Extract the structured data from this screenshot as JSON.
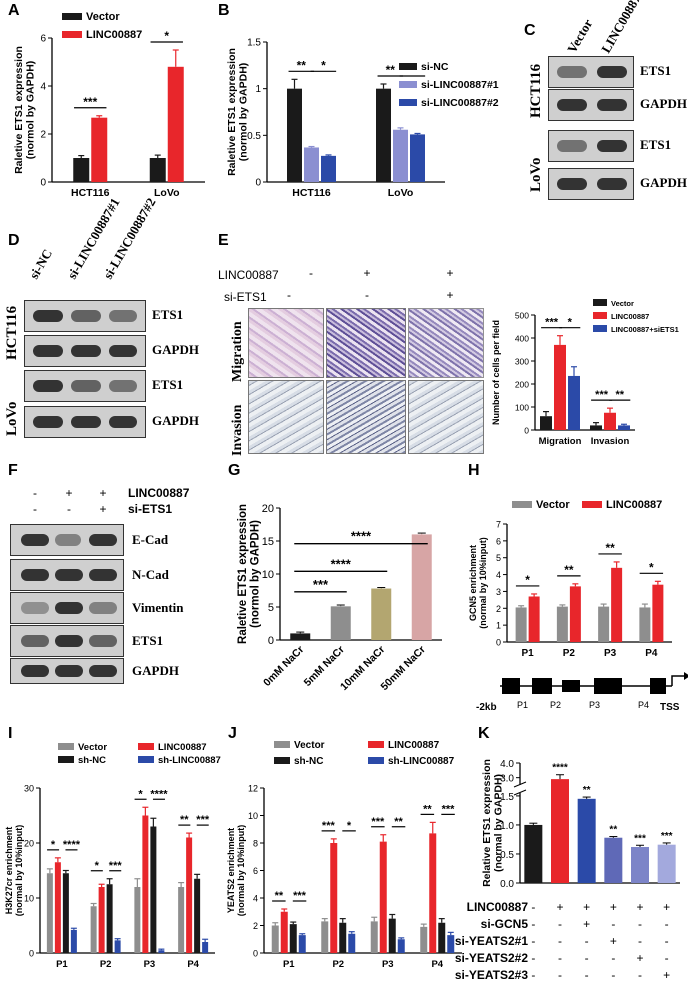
{
  "panels": {
    "A": {
      "label": "A"
    },
    "B": {
      "label": "B"
    },
    "C": {
      "label": "C"
    },
    "D": {
      "label": "D"
    },
    "E": {
      "label": "E"
    },
    "F": {
      "label": "F"
    },
    "G": {
      "label": "G"
    },
    "H": {
      "label": "H"
    },
    "I": {
      "label": "I"
    },
    "J": {
      "label": "J"
    },
    "K": {
      "label": "K"
    }
  },
  "blot_C": {
    "lanes": [
      "Vector",
      "LINC00887"
    ],
    "groups": [
      "HCT116",
      "LoVo"
    ],
    "rows": [
      "ETS1",
      "GAPDH",
      "ETS1",
      "GAPDH"
    ]
  },
  "blot_D": {
    "lanes": [
      "si-NC",
      "si-LINC00887#1",
      "si-LINC00887#2"
    ],
    "groups": [
      "HCT116",
      "LoVo"
    ],
    "rows": [
      "ETS1",
      "GAPDH",
      "ETS1",
      "GAPDH"
    ]
  },
  "panel_E": {
    "row_labels": [
      "LINC00887",
      "si-ETS1"
    ],
    "signs": [
      [
        "-",
        "+",
        "+"
      ],
      [
        "-",
        "-",
        "+"
      ]
    ],
    "image_rows": [
      "Migration",
      "Invasion"
    ]
  },
  "blot_F": {
    "row_labels": [
      "LINC00887",
      "si-ETS1"
    ],
    "signs": [
      [
        "-",
        "+",
        "+"
      ],
      [
        "-",
        "-",
        "+"
      ]
    ],
    "rows": [
      "E-Cad",
      "N-Cad",
      "Vimentin",
      "ETS1",
      "GAPDH"
    ]
  },
  "diagram_H": {
    "left": "-2kb",
    "right": "TSS",
    "regions": [
      "P1",
      "P2",
      "P3",
      "P4"
    ]
  },
  "panel_K_signs": {
    "rows": [
      "LINC00887",
      "si-GCN5",
      "si-YEATS2#1",
      "si-YEATS2#2",
      "si-YEATS2#3"
    ],
    "signs": [
      [
        "-",
        "+",
        "+",
        "+",
        "+",
        "+"
      ],
      [
        "-",
        "-",
        "+",
        "-",
        "-",
        "-"
      ],
      [
        "-",
        "-",
        "-",
        "+",
        "-",
        "-"
      ],
      [
        "-",
        "-",
        "-",
        "-",
        "+",
        "-"
      ],
      [
        "-",
        "-",
        "-",
        "-",
        "-",
        "+"
      ]
    ]
  },
  "chart_data": [
    {
      "id": "A",
      "type": "bar",
      "ylabel": "Raletive ETS1 expression\n(normol by GAPDH)",
      "categories": [
        "HCT116",
        "LoVo"
      ],
      "series": [
        {
          "name": "Vector",
          "color": "#1a1a1a",
          "values": [
            1.0,
            1.0
          ],
          "errors": [
            0.1,
            0.12
          ]
        },
        {
          "name": "LINC00887",
          "color": "#e8262b",
          "values": [
            2.68,
            4.8
          ],
          "errors": [
            0.08,
            0.7
          ]
        }
      ],
      "ylim": [
        0,
        6
      ],
      "yticks": [
        0,
        2,
        4,
        6
      ],
      "significance": [
        "***",
        "*"
      ]
    },
    {
      "id": "B",
      "type": "bar",
      "ylabel": "Raletive ETS1 expression\n(normol by GAPDH)",
      "categories": [
        "HCT116",
        "LoVo"
      ],
      "series": [
        {
          "name": "si-NC",
          "color": "#1a1a1a",
          "values": [
            1.0,
            1.0
          ],
          "errors": [
            0.1,
            0.05
          ]
        },
        {
          "name": "si-LINC00887#1",
          "color": "#8b8fd1",
          "values": [
            0.37,
            0.56
          ],
          "errors": [
            0.01,
            0.02
          ]
        },
        {
          "name": "si-LINC00887#2",
          "color": "#2b4aa8",
          "values": [
            0.28,
            0.51
          ],
          "errors": [
            0.01,
            0.01
          ]
        }
      ],
      "ylim": [
        0,
        1.5
      ],
      "yticks": [
        0.0,
        0.5,
        1.0,
        1.5
      ],
      "significance": [
        "**",
        "*",
        "**",
        "**"
      ]
    },
    {
      "id": "E",
      "type": "bar",
      "ylabel": "Number of cells per field",
      "categories": [
        "Migration",
        "Invasion"
      ],
      "series": [
        {
          "name": "Vector",
          "color": "#1a1a1a",
          "values": [
            60,
            20
          ],
          "errors": [
            20,
            12
          ]
        },
        {
          "name": "LINC00887",
          "color": "#e8262b",
          "values": [
            370,
            75
          ],
          "errors": [
            40,
            20
          ]
        },
        {
          "name": "LINC00887+siETS1",
          "color": "#2b4aa8",
          "values": [
            235,
            20
          ],
          "errors": [
            40,
            5
          ]
        }
      ],
      "ylim": [
        0,
        500
      ],
      "yticks": [
        0,
        100,
        200,
        300,
        400,
        500
      ],
      "significance": [
        "***",
        "*",
        "***",
        "**"
      ]
    },
    {
      "id": "G",
      "type": "bar",
      "ylabel": "Raletive ETS1 expression\n(normol by GAPDH)",
      "categories": [
        "0mM NaCr",
        "5mM NaCr",
        "10mM NaCr",
        "50mM NaCr"
      ],
      "values": [
        1.0,
        5.1,
        7.8,
        16.0
      ],
      "errors": [
        0.2,
        0.2,
        0.15,
        0.2
      ],
      "colors": [
        "#1a1a1a",
        "#8e8e8e",
        "#b3a670",
        "#d7a5a5"
      ],
      "ylim": [
        0,
        20
      ],
      "yticks": [
        0,
        5,
        10,
        15,
        20
      ],
      "significance": [
        "***",
        "****",
        "****"
      ]
    },
    {
      "id": "H",
      "type": "bar",
      "ylabel": "GCN5 enrichment\n(normal by 10%input)",
      "categories": [
        "P1",
        "P2",
        "P3",
        "P4"
      ],
      "series": [
        {
          "name": "Vector",
          "color": "#8e8e8e",
          "values": [
            2.05,
            2.1,
            2.1,
            2.05
          ],
          "errors": [
            0.1,
            0.1,
            0.15,
            0.2
          ]
        },
        {
          "name": "LINC00887",
          "color": "#e8262b",
          "values": [
            2.7,
            3.3,
            4.4,
            3.4
          ],
          "errors": [
            0.15,
            0.15,
            0.35,
            0.2
          ]
        }
      ],
      "ylim": [
        0,
        7
      ],
      "yticks": [
        0,
        1,
        2,
        3,
        4,
        5,
        6,
        7
      ],
      "significance": [
        "*",
        "**",
        "**",
        "*"
      ]
    },
    {
      "id": "I",
      "type": "bar",
      "ylabel": "H3K27cr enrichment\n(normal by 10%input)",
      "categories": [
        "P1",
        "P2",
        "P3",
        "P4"
      ],
      "series": [
        {
          "name": "Vector",
          "color": "#8e8e8e",
          "values": [
            14.5,
            8.5,
            12.0,
            12.0
          ],
          "errors": [
            0.8,
            0.5,
            1.5,
            0.8
          ]
        },
        {
          "name": "LINC00887",
          "color": "#e8262b",
          "values": [
            16.5,
            12.0,
            25.0,
            21.0
          ],
          "errors": [
            0.8,
            0.5,
            1.5,
            0.8
          ]
        },
        {
          "name": "sh-NC",
          "color": "#1a1a1a",
          "values": [
            14.5,
            12.5,
            23.0,
            13.5
          ],
          "errors": [
            0.5,
            1.0,
            1.5,
            0.8
          ]
        },
        {
          "name": "sh-LINC00887",
          "color": "#2b4aa8",
          "values": [
            4.2,
            2.3,
            0.5,
            2.0
          ],
          "errors": [
            0.3,
            0.3,
            0.2,
            0.5
          ]
        }
      ],
      "ylim": [
        0,
        30
      ],
      "yticks": [
        0,
        10,
        20,
        30
      ],
      "significance": [
        "*",
        "****",
        "*",
        "***",
        "*",
        "****",
        "**",
        "***"
      ]
    },
    {
      "id": "J",
      "type": "bar",
      "ylabel": "YEATS2 enrichment\n(normal by 10%input)",
      "categories": [
        "P1",
        "P2",
        "P3",
        "P4"
      ],
      "series": [
        {
          "name": "Vector",
          "color": "#8e8e8e",
          "values": [
            2.0,
            2.3,
            2.3,
            1.9
          ],
          "errors": [
            0.2,
            0.2,
            0.3,
            0.2
          ]
        },
        {
          "name": "LINC00887",
          "color": "#e8262b",
          "values": [
            3.0,
            8.0,
            8.1,
            8.7
          ],
          "errors": [
            0.2,
            0.3,
            0.5,
            0.8
          ]
        },
        {
          "name": "sh-NC",
          "color": "#1a1a1a",
          "values": [
            2.1,
            2.2,
            2.5,
            2.2
          ],
          "errors": [
            0.15,
            0.3,
            0.3,
            0.3
          ]
        },
        {
          "name": "sh-LINC00887",
          "color": "#2b4aa8",
          "values": [
            1.3,
            1.4,
            1.0,
            1.3
          ],
          "errors": [
            0.1,
            0.15,
            0.1,
            0.2
          ]
        }
      ],
      "ylim": [
        0,
        12
      ],
      "yticks": [
        0,
        2,
        4,
        6,
        8,
        10,
        12
      ],
      "significance": [
        "**",
        "***",
        "***",
        "*",
        "***",
        "**",
        "**",
        "***"
      ]
    },
    {
      "id": "K",
      "type": "bar",
      "ylabel": "Relative ETS1 expression\n(normal by GAPDH)",
      "values": [
        1.0,
        2.9,
        1.45,
        0.78,
        0.62,
        0.66
      ],
      "errors": [
        0.03,
        0.3,
        0.03,
        0.02,
        0.03,
        0.03
      ],
      "colors": [
        "#1a1a1a",
        "#e8262b",
        "#2b4aa8",
        "#5f69b7",
        "#7c84c8",
        "#a3a9dd"
      ],
      "ylim": [
        0,
        4
      ],
      "yticks": [
        0.0,
        0.5,
        1.0,
        1.5,
        3.0,
        4.0
      ],
      "axis_break": [
        1.55,
        2.5
      ],
      "significance": [
        "****",
        "**",
        "**",
        "***",
        "***"
      ]
    }
  ]
}
